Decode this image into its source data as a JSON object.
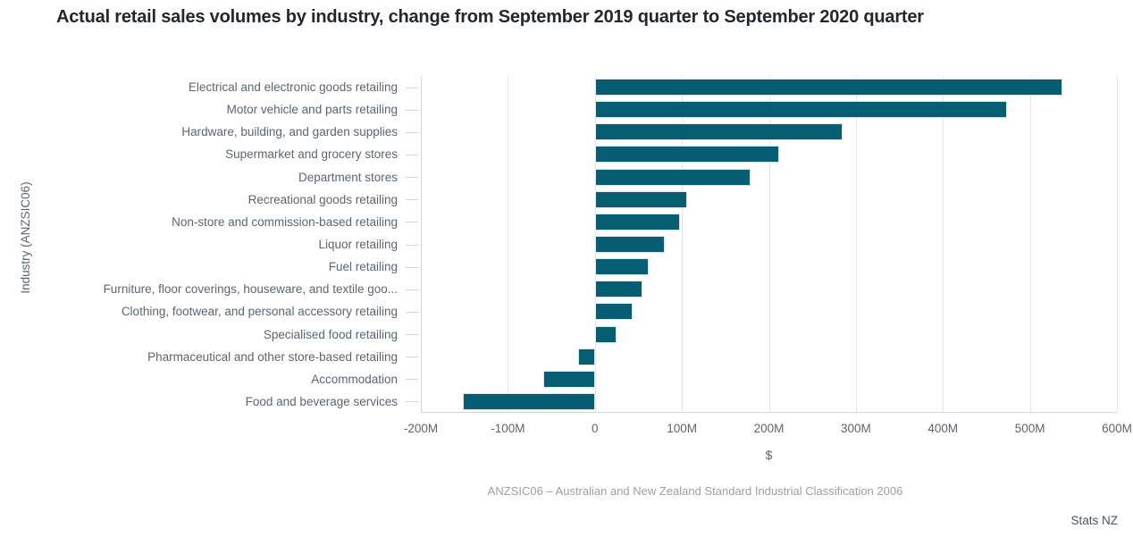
{
  "chart_data": {
    "type": "bar",
    "orientation": "horizontal",
    "title": "Actual retail sales volumes by industry, change from September 2019 quarter to September 2020 quarter",
    "xlabel": "$",
    "ylabel": "Industry (ANZSIC06)",
    "footnote": "ANZSIC06 – Australian and New Zealand Standard Industrial Classification 2006",
    "attribution": "Stats NZ",
    "grid": true,
    "legend": "none",
    "xlim_millions": [
      -200,
      600
    ],
    "x_ticks": [
      {
        "label": "-200M",
        "m": -200
      },
      {
        "label": "-100M",
        "m": -100
      },
      {
        "label": "0",
        "m": 0
      },
      {
        "label": "100M",
        "m": 100
      },
      {
        "label": "200M",
        "m": 200
      },
      {
        "label": "300M",
        "m": 300
      },
      {
        "label": "400M",
        "m": 400
      },
      {
        "label": "500M",
        "m": 500
      },
      {
        "label": "600M",
        "m": 600
      }
    ],
    "categories": [
      "Electrical and electronic goods retailing",
      "Motor vehicle and parts retailing",
      "Hardware, building, and garden supplies",
      "Supermarket and grocery stores",
      "Department stores",
      "Recreational goods retailing",
      "Non-store and commission-based retailing",
      "Liquor retailing",
      "Fuel retailing",
      "Furniture, floor coverings, houseware, and textile goo...",
      "Clothing, footwear, and personal accessory retailing",
      "Specialised food retailing",
      "Pharmaceutical and other store-based retailing",
      "Accommodation",
      "Food and beverage services"
    ],
    "values_millions": [
      537,
      474,
      285,
      212,
      179,
      106,
      98,
      80,
      62,
      55,
      43,
      25,
      -19,
      -59,
      -152
    ],
    "colors": {
      "bar": "#075e73",
      "axis_line": "#ccd6eb",
      "gridline": "#e6e6e6",
      "axis_text": "#5b6570",
      "title_text": "#23282d",
      "footnote_text": "#9aa0a6",
      "attribution_text": "#4c545c"
    }
  }
}
